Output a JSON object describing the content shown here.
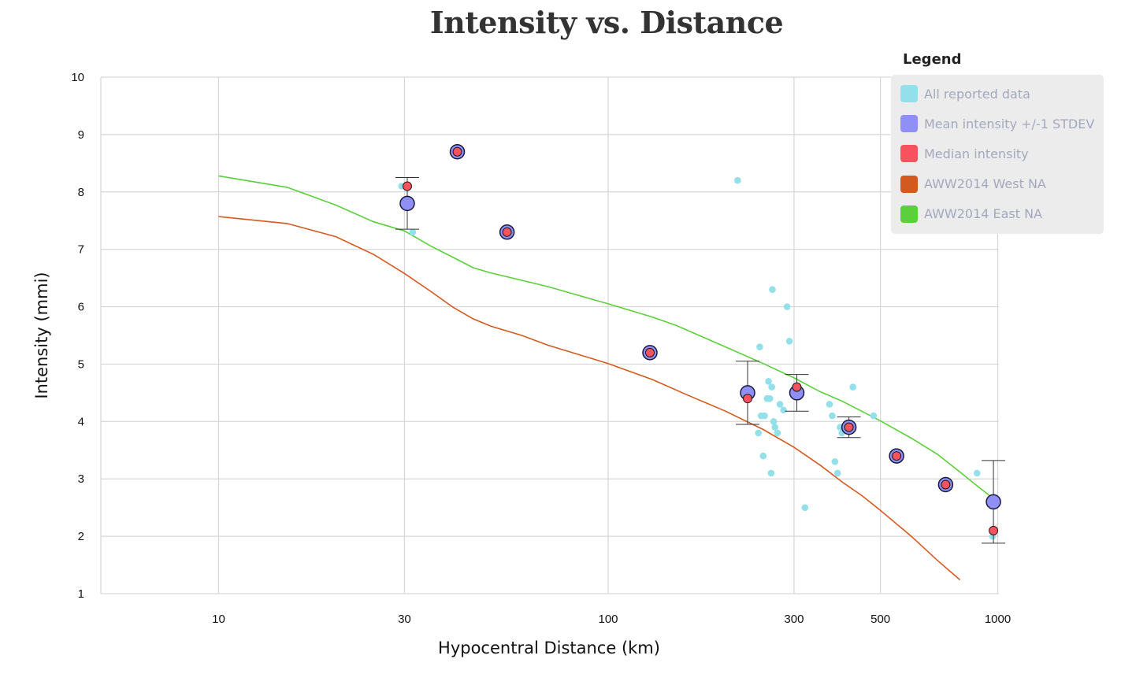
{
  "chart_data": {
    "type": "scatter",
    "title": "Intensity vs. Distance",
    "xlabel": "Hypocentral Distance (km)",
    "ylabel": "Intensity (mmi)",
    "xscale": "log",
    "xlim": [
      5,
      1000
    ],
    "ylim": [
      1,
      10
    ],
    "xticks": [
      10,
      30,
      100,
      300,
      500,
      1000
    ],
    "yticks": [
      1,
      2,
      3,
      4,
      5,
      6,
      7,
      8,
      9,
      10
    ],
    "grid": true,
    "legend_position": "top-right",
    "legend_title": "Legend",
    "legend": [
      {
        "label": "All reported data",
        "color": "#93e0ea"
      },
      {
        "label": "Mean intensity +/-1 STDEV",
        "color": "#8f8ff6"
      },
      {
        "label": "Median intensity",
        "color": "#f9525f"
      },
      {
        "label": "AWW2014 West NA",
        "color": "#d4591e"
      },
      {
        "label": "AWW2014 East NA",
        "color": "#5ccf3c"
      }
    ],
    "series": [
      {
        "name": "All reported data",
        "kind": "points",
        "color": "#93e0ea",
        "points": [
          [
            29.5,
            8.1
          ],
          [
            31.5,
            7.3
          ],
          [
            41,
            8.7
          ],
          [
            55,
            7.3
          ],
          [
            130,
            5.2
          ],
          [
            215,
            8.2
          ],
          [
            228,
            4.5
          ],
          [
            245,
            5.3
          ],
          [
            250,
            3.4
          ],
          [
            243,
            3.8
          ],
          [
            247,
            4.1
          ],
          [
            252,
            4.1
          ],
          [
            256,
            4.4
          ],
          [
            258,
            4.7
          ],
          [
            260,
            4.4
          ],
          [
            262,
            3.1
          ],
          [
            263,
            4.6
          ],
          [
            264,
            6.3
          ],
          [
            266,
            4.0
          ],
          [
            268,
            3.9
          ],
          [
            272,
            3.8
          ],
          [
            276,
            4.3
          ],
          [
            282,
            4.2
          ],
          [
            288,
            6.0
          ],
          [
            292,
            5.4
          ],
          [
            320,
            2.5
          ],
          [
            370,
            4.3
          ],
          [
            376,
            4.1
          ],
          [
            382,
            3.3
          ],
          [
            388,
            3.1
          ],
          [
            394,
            3.9
          ],
          [
            398,
            3.8
          ],
          [
            425,
            4.6
          ],
          [
            480,
            4.1
          ],
          [
            560,
            3.4
          ],
          [
            750,
            2.9
          ],
          [
            885,
            3.1
          ],
          [
            970,
            2.0
          ]
        ]
      },
      {
        "name": "Mean intensity +/-1 STDEV",
        "kind": "mean",
        "color": "#8f8ff6",
        "points": [
          {
            "x": 30.5,
            "y": 7.8,
            "low": 7.35,
            "high": 8.25
          },
          {
            "x": 41,
            "y": 8.7
          },
          {
            "x": 55,
            "y": 7.3
          },
          {
            "x": 128,
            "y": 5.2
          },
          {
            "x": 228,
            "y": 4.5,
            "low": 3.95,
            "high": 5.05
          },
          {
            "x": 305,
            "y": 4.5,
            "low": 4.18,
            "high": 4.82
          },
          {
            "x": 415,
            "y": 3.9,
            "low": 3.72,
            "high": 4.08
          },
          {
            "x": 550,
            "y": 3.4
          },
          {
            "x": 735,
            "y": 2.9
          },
          {
            "x": 975,
            "y": 2.6,
            "low": 1.88,
            "high": 3.32
          }
        ]
      },
      {
        "name": "Median intensity",
        "kind": "median",
        "color": "#f9525f",
        "points": [
          [
            30.5,
            8.1
          ],
          [
            41,
            8.7
          ],
          [
            55,
            7.3
          ],
          [
            128,
            5.2
          ],
          [
            228,
            4.4
          ],
          [
            305,
            4.6
          ],
          [
            415,
            3.9
          ],
          [
            550,
            3.4
          ],
          [
            735,
            2.9
          ],
          [
            975,
            2.1
          ]
        ]
      },
      {
        "name": "AWW2014 West NA",
        "kind": "line",
        "color": "#d4591e",
        "points": [
          [
            10,
            7.57
          ],
          [
            15,
            7.45
          ],
          [
            20,
            7.22
          ],
          [
            25,
            6.91
          ],
          [
            30,
            6.58
          ],
          [
            35,
            6.27
          ],
          [
            40,
            5.99
          ],
          [
            45,
            5.79
          ],
          [
            50,
            5.66
          ],
          [
            60,
            5.5
          ],
          [
            70,
            5.33
          ],
          [
            80,
            5.21
          ],
          [
            100,
            5.01
          ],
          [
            130,
            4.73
          ],
          [
            160,
            4.46
          ],
          [
            200,
            4.18
          ],
          [
            250,
            3.86
          ],
          [
            300,
            3.55
          ],
          [
            350,
            3.24
          ],
          [
            400,
            2.94
          ],
          [
            450,
            2.7
          ],
          [
            500,
            2.45
          ],
          [
            600,
            2.0
          ],
          [
            700,
            1.58
          ],
          [
            800,
            1.24
          ]
        ]
      },
      {
        "name": "AWW2014 East NA",
        "kind": "line",
        "color": "#5ccf3c",
        "points": [
          [
            10,
            8.28
          ],
          [
            15,
            8.08
          ],
          [
            20,
            7.77
          ],
          [
            25,
            7.48
          ],
          [
            30,
            7.32
          ],
          [
            35,
            7.06
          ],
          [
            40,
            6.86
          ],
          [
            45,
            6.68
          ],
          [
            50,
            6.59
          ],
          [
            70,
            6.35
          ],
          [
            100,
            6.05
          ],
          [
            130,
            5.82
          ],
          [
            150,
            5.67
          ],
          [
            200,
            5.3
          ],
          [
            250,
            5.01
          ],
          [
            300,
            4.76
          ],
          [
            350,
            4.52
          ],
          [
            400,
            4.35
          ],
          [
            500,
            4.01
          ],
          [
            600,
            3.71
          ],
          [
            700,
            3.43
          ],
          [
            800,
            3.12
          ],
          [
            900,
            2.84
          ],
          [
            1000,
            2.6
          ]
        ]
      }
    ]
  }
}
